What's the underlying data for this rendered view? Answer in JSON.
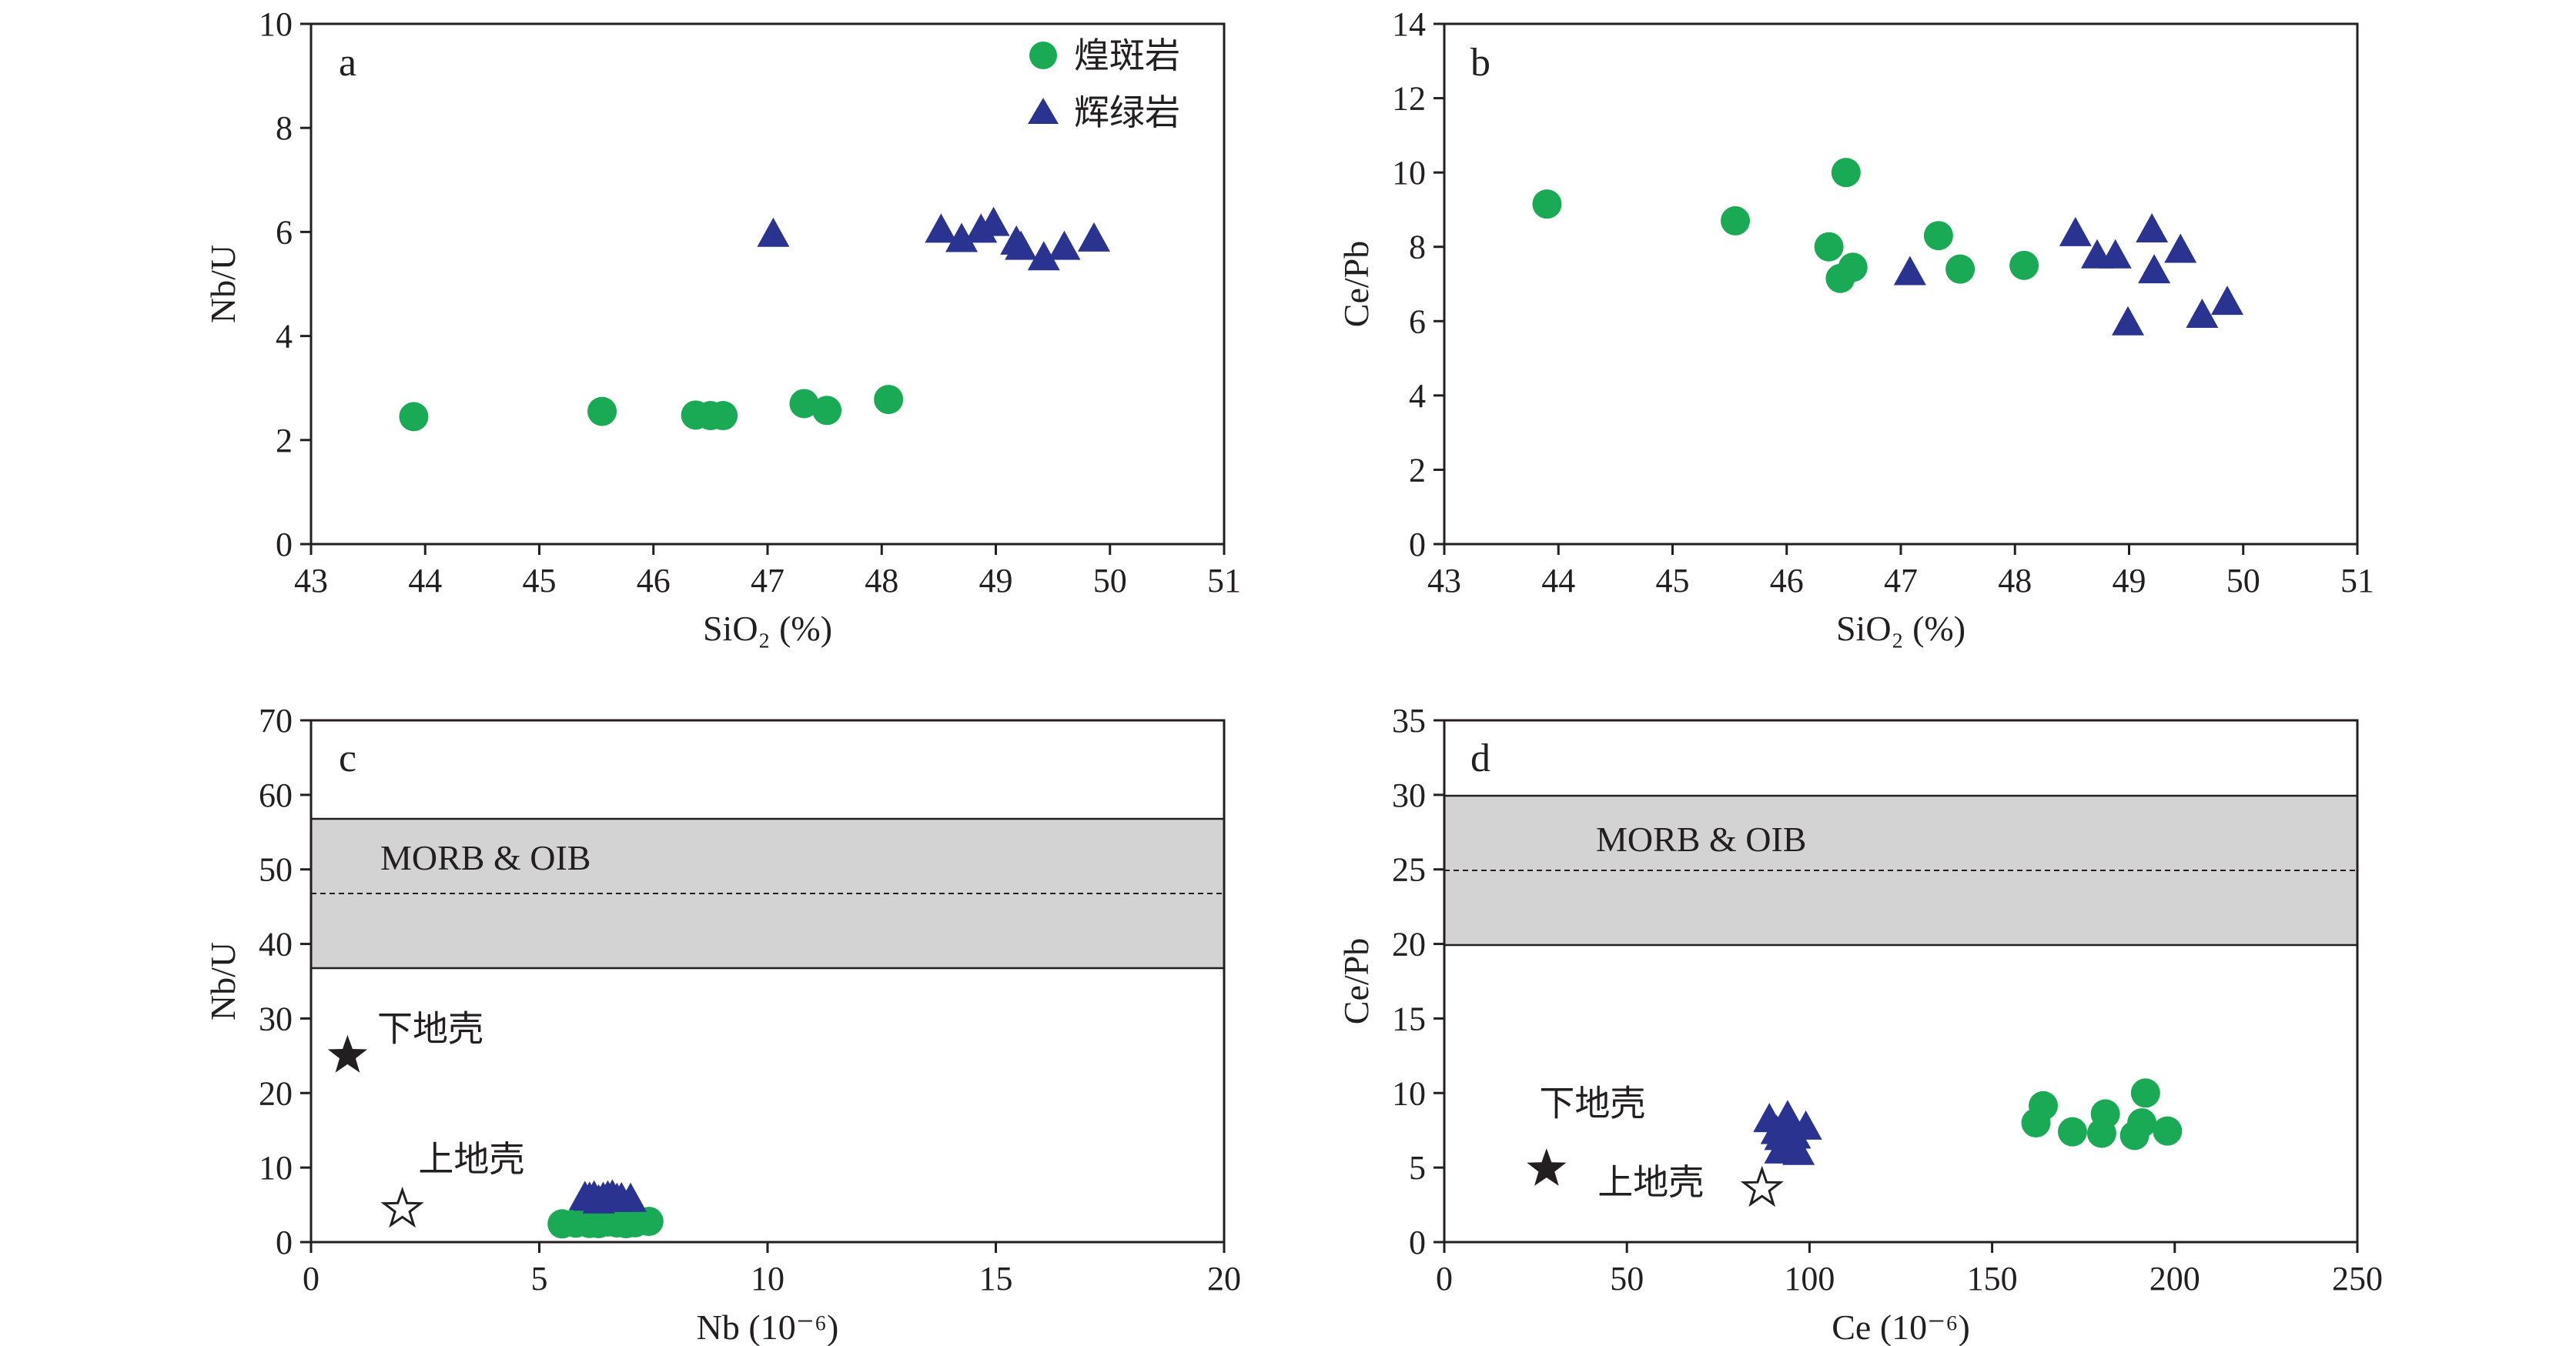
{
  "legend": {
    "items": [
      {
        "label": "煌斑岩",
        "marker": "circle",
        "color": "#1aaa55"
      },
      {
        "label": "辉绿岩",
        "marker": "triangle",
        "color": "#2b3390"
      }
    ]
  },
  "colors": {
    "lamprophyre": "#1aaa55",
    "diabase": "#2b3390",
    "band": "#d3d3d3",
    "axis": "#231f20"
  },
  "chart_data": [
    {
      "id": "a",
      "type": "scatter",
      "panel_label": "a",
      "xlabel": "SiO₂ (%)",
      "ylabel": "Nb/U",
      "xlim": [
        43,
        51
      ],
      "ylim": [
        0,
        10
      ],
      "xticks": [
        43,
        44,
        45,
        46,
        47,
        48,
        49,
        50,
        51
      ],
      "yticks": [
        0,
        2,
        4,
        6,
        8,
        10
      ],
      "series": [
        {
          "name": "煌斑岩",
          "marker": "circle",
          "color": "#1aaa55",
          "x": [
            43.9,
            45.55,
            46.37,
            46.5,
            46.61,
            47.32,
            47.52,
            48.06
          ],
          "y": [
            2.45,
            2.55,
            2.48,
            2.47,
            2.47,
            2.7,
            2.57,
            2.78
          ]
        },
        {
          "name": "辉绿岩",
          "marker": "triangle",
          "color": "#2b3390",
          "x": [
            47.05,
            48.52,
            48.7,
            48.87,
            48.98,
            49.18,
            49.22,
            49.42,
            49.6,
            49.86
          ],
          "y": [
            5.95,
            6.03,
            5.85,
            6.03,
            6.16,
            5.8,
            5.7,
            5.5,
            5.7,
            5.86
          ]
        }
      ]
    },
    {
      "id": "b",
      "type": "scatter",
      "panel_label": "b",
      "xlabel": "SiO₂ (%)",
      "ylabel": "Ce/Pb",
      "xlim": [
        43,
        51
      ],
      "ylim": [
        0,
        14
      ],
      "xticks": [
        43,
        44,
        45,
        46,
        47,
        48,
        49,
        50,
        51
      ],
      "yticks": [
        0,
        2,
        4,
        6,
        8,
        10,
        12,
        14
      ],
      "series": [
        {
          "name": "煌斑岩",
          "marker": "circle",
          "color": "#1aaa55",
          "x": [
            43.9,
            45.55,
            46.37,
            46.47,
            46.52,
            46.58,
            47.33,
            47.52,
            48.08
          ],
          "y": [
            9.15,
            8.7,
            8.0,
            7.15,
            10.0,
            7.45,
            8.3,
            7.4,
            7.5
          ]
        },
        {
          "name": "辉绿岩",
          "marker": "triangle",
          "color": "#2b3390",
          "x": [
            47.08,
            48.53,
            48.72,
            48.88,
            48.99,
            49.2,
            49.22,
            49.45,
            49.64,
            49.86
          ],
          "y": [
            7.3,
            8.35,
            7.75,
            7.75,
            5.95,
            8.45,
            7.35,
            7.9,
            6.15,
            6.5
          ]
        }
      ]
    },
    {
      "id": "c",
      "type": "scatter",
      "panel_label": "c",
      "xlabel": "Nb (10⁻⁶)",
      "ylabel": "Nb/U",
      "xlim": [
        0,
        20
      ],
      "ylim": [
        0,
        70
      ],
      "xticks": [
        0,
        5,
        10,
        15,
        20
      ],
      "yticks": [
        0,
        10,
        20,
        30,
        40,
        50,
        60,
        70
      ],
      "band": {
        "label": "MORB & OIB",
        "low": 37,
        "high": 57,
        "mid": 47
      },
      "series": [
        {
          "name": "煌斑岩",
          "marker": "circle",
          "color": "#1aaa55",
          "x": [
            5.5,
            5.8,
            6.1,
            6.3,
            6.5,
            6.7,
            6.9,
            7.1,
            7.4
          ],
          "y": [
            2.45,
            2.55,
            2.5,
            2.48,
            2.7,
            2.57,
            2.47,
            2.6,
            2.78
          ]
        },
        {
          "name": "辉绿岩",
          "marker": "triangle",
          "color": "#2b3390",
          "x": [
            6.0,
            6.2,
            6.4,
            6.5,
            6.6,
            6.8,
            7.0,
            6.3,
            6.7,
            6.1
          ],
          "y": [
            5.95,
            6.03,
            5.85,
            6.03,
            6.16,
            5.8,
            5.7,
            5.5,
            5.7,
            5.86
          ]
        },
        {
          "name": "下地壳",
          "marker": "star-filled",
          "color": "#231f20",
          "x": [
            0.8
          ],
          "y": [
            25
          ]
        },
        {
          "name": "上地壳",
          "marker": "star-open",
          "color": "#231f20",
          "x": [
            2.0
          ],
          "y": [
            4.4
          ]
        }
      ],
      "annotations": [
        {
          "text": "下地壳",
          "x": 1.45,
          "y": 27
        },
        {
          "text": "上地壳",
          "x": 2.35,
          "y": 9.5
        }
      ]
    },
    {
      "id": "d",
      "type": "scatter",
      "panel_label": "d",
      "xlabel": "Ce (10⁻⁶)",
      "ylabel": "Ce/Pb",
      "xlim": [
        0,
        250
      ],
      "ylim": [
        0,
        35
      ],
      "xticks": [
        0,
        50,
        100,
        150,
        200,
        250
      ],
      "yticks": [
        0,
        5,
        10,
        15,
        20,
        25,
        30,
        35
      ],
      "band": {
        "label": "MORB & OIB",
        "low": 20,
        "high": 30,
        "mid": 25
      },
      "series": [
        {
          "name": "煌斑岩",
          "marker": "circle",
          "color": "#1aaa55",
          "x": [
            162,
            164,
            172,
            180,
            181,
            189,
            191,
            192,
            198
          ],
          "y": [
            8.0,
            9.15,
            7.4,
            7.3,
            8.6,
            7.15,
            8.0,
            10.0,
            7.45
          ]
        },
        {
          "name": "辉绿岩",
          "marker": "triangle",
          "color": "#2b3390",
          "x": [
            89,
            91,
            92,
            93,
            94,
            95,
            96,
            97,
            99,
            92
          ],
          "y": [
            8.2,
            7.4,
            6.1,
            7.8,
            8.4,
            6.5,
            7.1,
            6.0,
            7.7,
            7.0
          ]
        },
        {
          "name": "下地壳",
          "marker": "star-filled",
          "color": "#231f20",
          "x": [
            28
          ],
          "y": [
            4.9
          ]
        },
        {
          "name": "上地壳",
          "marker": "star-open",
          "color": "#231f20",
          "x": [
            87
          ],
          "y": [
            3.6
          ]
        }
      ],
      "annotations": [
        {
          "text": "下地壳",
          "x": 26,
          "y": 8.5
        },
        {
          "text": "上地壳",
          "x": 42,
          "y": 3.2
        }
      ]
    }
  ]
}
